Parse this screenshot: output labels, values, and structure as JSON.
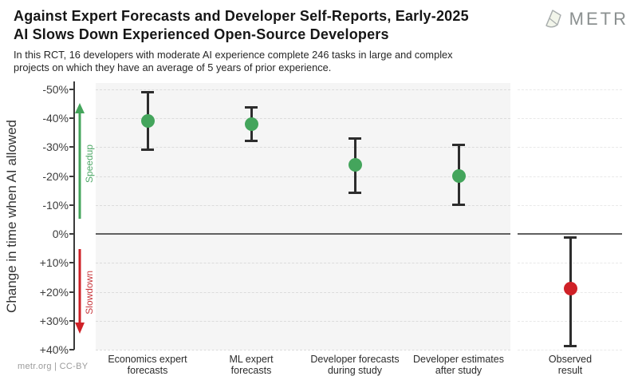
{
  "header": {
    "title_lines": [
      "Against Expert Forecasts and Developer Self-Reports, Early-2025",
      "AI Slows Down Experienced Open-Source Developers"
    ],
    "subtitle_lines": [
      "In this RCT, 16 developers with moderate AI experience complete 246 tasks in large and complex",
      "projects on which they have an average of 5 years of prior experience."
    ],
    "logo_text": "METR"
  },
  "footer": {
    "credit": "metr.org | CC-BY"
  },
  "colors": {
    "green": "#44a55c",
    "red": "#cf2127",
    "errorbar": "#2d2d2d",
    "zero_line": "#606060",
    "panel_bg": "#f5f5f5"
  },
  "chart_data": {
    "type": "scatter",
    "title": "Against Expert Forecasts and Developer Self-Reports, Early-2025 AI Slows Down Experienced Open-Source Developers",
    "ylabel": "Change in time when AI allowed",
    "unit": "percent",
    "y_axis": {
      "inverted": true,
      "ylim": [
        -50,
        40
      ],
      "ticks": [
        -50,
        -40,
        -30,
        -20,
        -10,
        0,
        10,
        20,
        30,
        40
      ],
      "tick_labels": [
        "-50%",
        "-40%",
        "-30%",
        "-20%",
        "-10%",
        "0%",
        "+10%",
        "+20%",
        "+30%",
        "+40%"
      ]
    },
    "grid": true,
    "legend": false,
    "annotations": {
      "speedup": {
        "label": "Speedup",
        "direction": "up",
        "color": "#44a55c"
      },
      "slowdown": {
        "label": "Slowdown",
        "direction": "down",
        "color": "#cf2127"
      }
    },
    "points": [
      {
        "category": "Economics expert forecasts",
        "label_lines": [
          "Economics expert",
          "forecasts"
        ],
        "value": -39,
        "ci": [
          -49,
          -29
        ],
        "color": "#44a55c",
        "panel": "main"
      },
      {
        "category": "ML expert forecasts",
        "label_lines": [
          "ML expert",
          "forecasts"
        ],
        "value": -38,
        "ci": [
          -44,
          -32
        ],
        "color": "#44a55c",
        "panel": "main"
      },
      {
        "category": "Developer forecasts during study",
        "label_lines": [
          "Developer forecasts",
          "during study"
        ],
        "value": -24,
        "ci": [
          -33,
          -14
        ],
        "color": "#44a55c",
        "panel": "main"
      },
      {
        "category": "Developer estimates after study",
        "label_lines": [
          "Developer estimates",
          "after study"
        ],
        "value": -20,
        "ci": [
          -31,
          -10
        ],
        "color": "#44a55c",
        "panel": "main"
      },
      {
        "category": "Observed result",
        "label_lines": [
          "Observed",
          "result"
        ],
        "value": 19,
        "ci": [
          1,
          39
        ],
        "color": "#cf2127",
        "panel": "right"
      }
    ]
  }
}
